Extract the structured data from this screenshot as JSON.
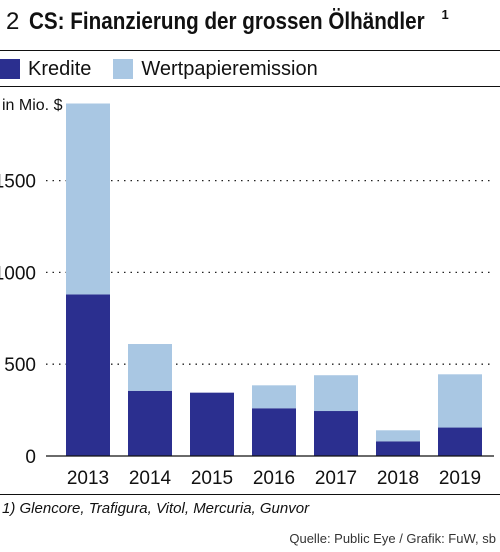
{
  "header": {
    "number": "2",
    "title": "CS: Finanzierung der grossen Ölhändler",
    "footnote_marker": "1"
  },
  "colors": {
    "kredite": "#2b2f8f",
    "wertpapier": "#a9c7e3",
    "grid": "#222222"
  },
  "chart_data": {
    "type": "bar",
    "stacked": true,
    "categories": [
      "2013",
      "2014",
      "2015",
      "2016",
      "2017",
      "2018",
      "2019"
    ],
    "series": [
      {
        "name": "Kredite",
        "values": [
          880,
          355,
          345,
          260,
          245,
          80,
          155
        ]
      },
      {
        "name": "Wertpapieremission",
        "values": [
          1040,
          255,
          0,
          125,
          195,
          60,
          290
        ]
      }
    ],
    "ylabel": "in Mio. $",
    "ylim": [
      0,
      1950
    ],
    "yticks": [
      0,
      500,
      1000,
      1500
    ],
    "grid": true,
    "legend": "top-left"
  },
  "footnote": "1) Glencore, Trafigura, Vitol, Mercuria, Gunvor",
  "source": "Quelle: Public Eye / Grafik: FuW, sb"
}
